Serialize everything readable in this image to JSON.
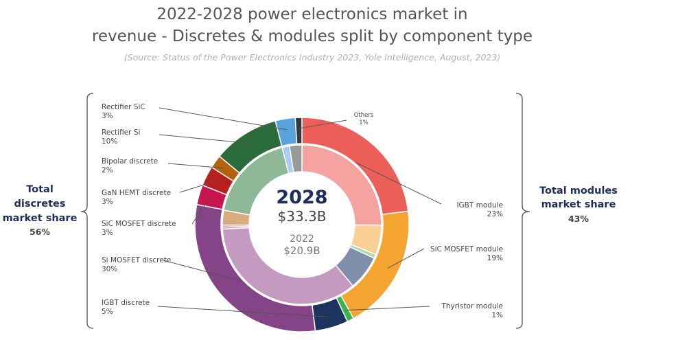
{
  "chart_data": {
    "type": "pie",
    "subtype": "double-donut",
    "title_lines": [
      "2022-2028 power electronics market in",
      "revenue - Discretes & modules split by component type"
    ],
    "source": "(Source: Status of the Power Electronics Industry 2023, Yole Intelligence, August, 2023)",
    "center": {
      "year_outer": "2028",
      "value_outer": "$33.3B",
      "year_inner": "2022",
      "value_inner": "$20.9B"
    },
    "outer_ring_year": "2028",
    "inner_ring_year": "2022",
    "categories": [
      "IGBT module",
      "SiC MOSFET module",
      "Thyristor module",
      "IGBT discrete",
      "Si MOSFET discrete",
      "SiC MOSFET discrete",
      "GaN HEMT discrete",
      "Bipolar discrete",
      "Rectifier Si",
      "Rectifier SiC",
      "Others"
    ],
    "labels_pct": [
      "23%",
      "19%",
      "1%",
      "5%",
      "30%",
      "3%",
      "3%",
      "2%",
      "10%",
      "3%",
      "1%"
    ],
    "series": [
      {
        "name": "2028",
        "values": [
          23,
          19,
          1,
          5,
          30,
          3,
          3,
          2,
          10,
          3,
          1
        ],
        "colors": [
          "#ec5f58",
          "#f4a431",
          "#3ab54a",
          "#1d3461",
          "#844487",
          "#c8144f",
          "#b8201f",
          "#b5620f",
          "#2b6b3c",
          "#5aa2dc",
          "#333a40"
        ]
      },
      {
        "name": "2022 (estimated)",
        "values": [
          25,
          6,
          0.8,
          7,
          35,
          0.4,
          0.4,
          3,
          18,
          1.5,
          2.5
        ],
        "colors": [
          "#f4a3a0",
          "#f9cf94",
          "#a8dcb0",
          "#7f8fab",
          "#c49ac0",
          "#e57fa0",
          "#e08080",
          "#d9ab7f",
          "#8fb897",
          "#a9cdee",
          "#9a9a9a"
        ]
      }
    ],
    "groups": {
      "discretes": {
        "label_lines": [
          "Total",
          "discretes",
          "market share"
        ],
        "value": "56%"
      },
      "modules": {
        "label_lines": [
          "Total modules",
          "market share"
        ],
        "value": "43%"
      }
    }
  }
}
